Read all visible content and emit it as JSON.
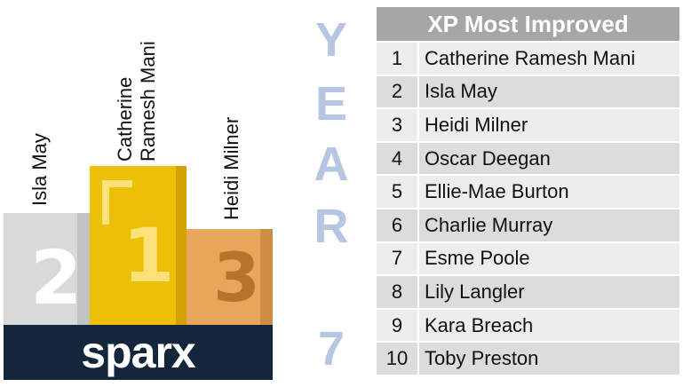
{
  "podium": {
    "first": {
      "line1": "Catherine",
      "line2": "Ramesh Mani",
      "digit": "1"
    },
    "second": {
      "name": "Isla May",
      "digit": "2"
    },
    "third": {
      "name": "Heidi Milner",
      "digit": "3"
    },
    "brand": "sparx"
  },
  "year_letters": [
    "Y",
    "E",
    "A",
    "R",
    "7"
  ],
  "table": {
    "title": "XP Most Improved",
    "rows": [
      {
        "rank": "1",
        "name": "Catherine Ramesh Mani"
      },
      {
        "rank": "2",
        "name": "Isla May"
      },
      {
        "rank": "3",
        "name": "Heidi Milner"
      },
      {
        "rank": "4",
        "name": "Oscar Deegan"
      },
      {
        "rank": "5",
        "name": "Ellie-Mae Burton"
      },
      {
        "rank": "6",
        "name": "Charlie Murray"
      },
      {
        "rank": "7",
        "name": "Esme Poole"
      },
      {
        "rank": "8",
        "name": "Lily Langler"
      },
      {
        "rank": "9",
        "name": "Kara Breach"
      },
      {
        "rank": "10",
        "name": "Toby Preston"
      }
    ]
  },
  "colors": {
    "gold": "#ecbf08",
    "silver": "#d9d9d9",
    "bronze": "#e7a65a",
    "brand_bg": "#14263b",
    "year_text": "#b6c5e2",
    "table_header": "#a6a6a6"
  }
}
